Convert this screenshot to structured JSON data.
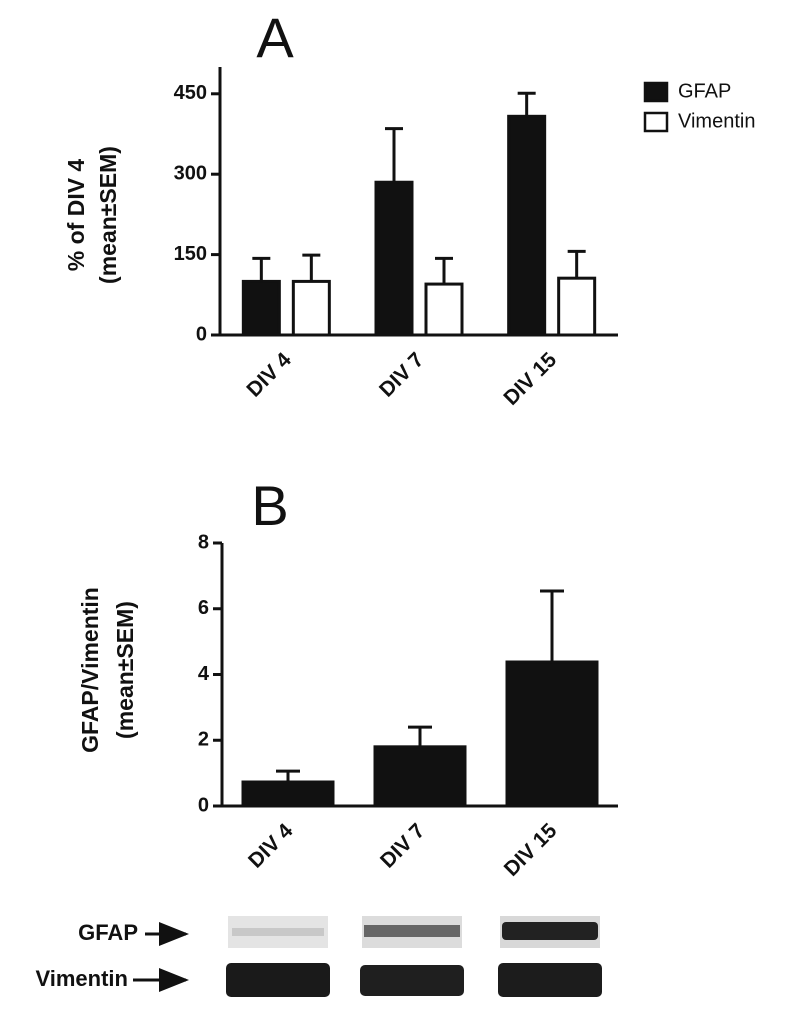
{
  "chart_data": [
    {
      "type": "bar",
      "title": "A",
      "ylabel": [
        "% of DIV 4",
        "(mean±SEM)"
      ],
      "categories": [
        "DIV 4",
        "DIV 7",
        "DIV 15"
      ],
      "series": [
        {
          "name": "GFAP",
          "color": "#111111",
          "values": [
            100,
            285,
            408
          ],
          "errors": [
            43,
            100,
            43
          ]
        },
        {
          "name": "Vimentin",
          "color": "#ffffff",
          "values": [
            100,
            95,
            106
          ],
          "errors": [
            49,
            48,
            50
          ]
        }
      ],
      "ylim": [
        0,
        500
      ],
      "yticks": [
        0,
        150,
        300,
        450
      ],
      "legend": "upper right"
    },
    {
      "type": "bar",
      "title": "B",
      "ylabel": [
        "GFAP/Vimentin",
        "(mean±SEM)"
      ],
      "categories": [
        "DIV 4",
        "DIV 7",
        "DIV 15"
      ],
      "values": [
        0.73,
        1.8,
        4.38
      ],
      "errors": [
        0.33,
        0.6,
        2.16
      ],
      "color": "#111111",
      "ylim": [
        0,
        8
      ],
      "yticks": [
        0,
        2,
        4,
        6,
        8
      ]
    }
  ],
  "blot": {
    "labels": [
      "GFAP",
      "Vimentin"
    ]
  }
}
